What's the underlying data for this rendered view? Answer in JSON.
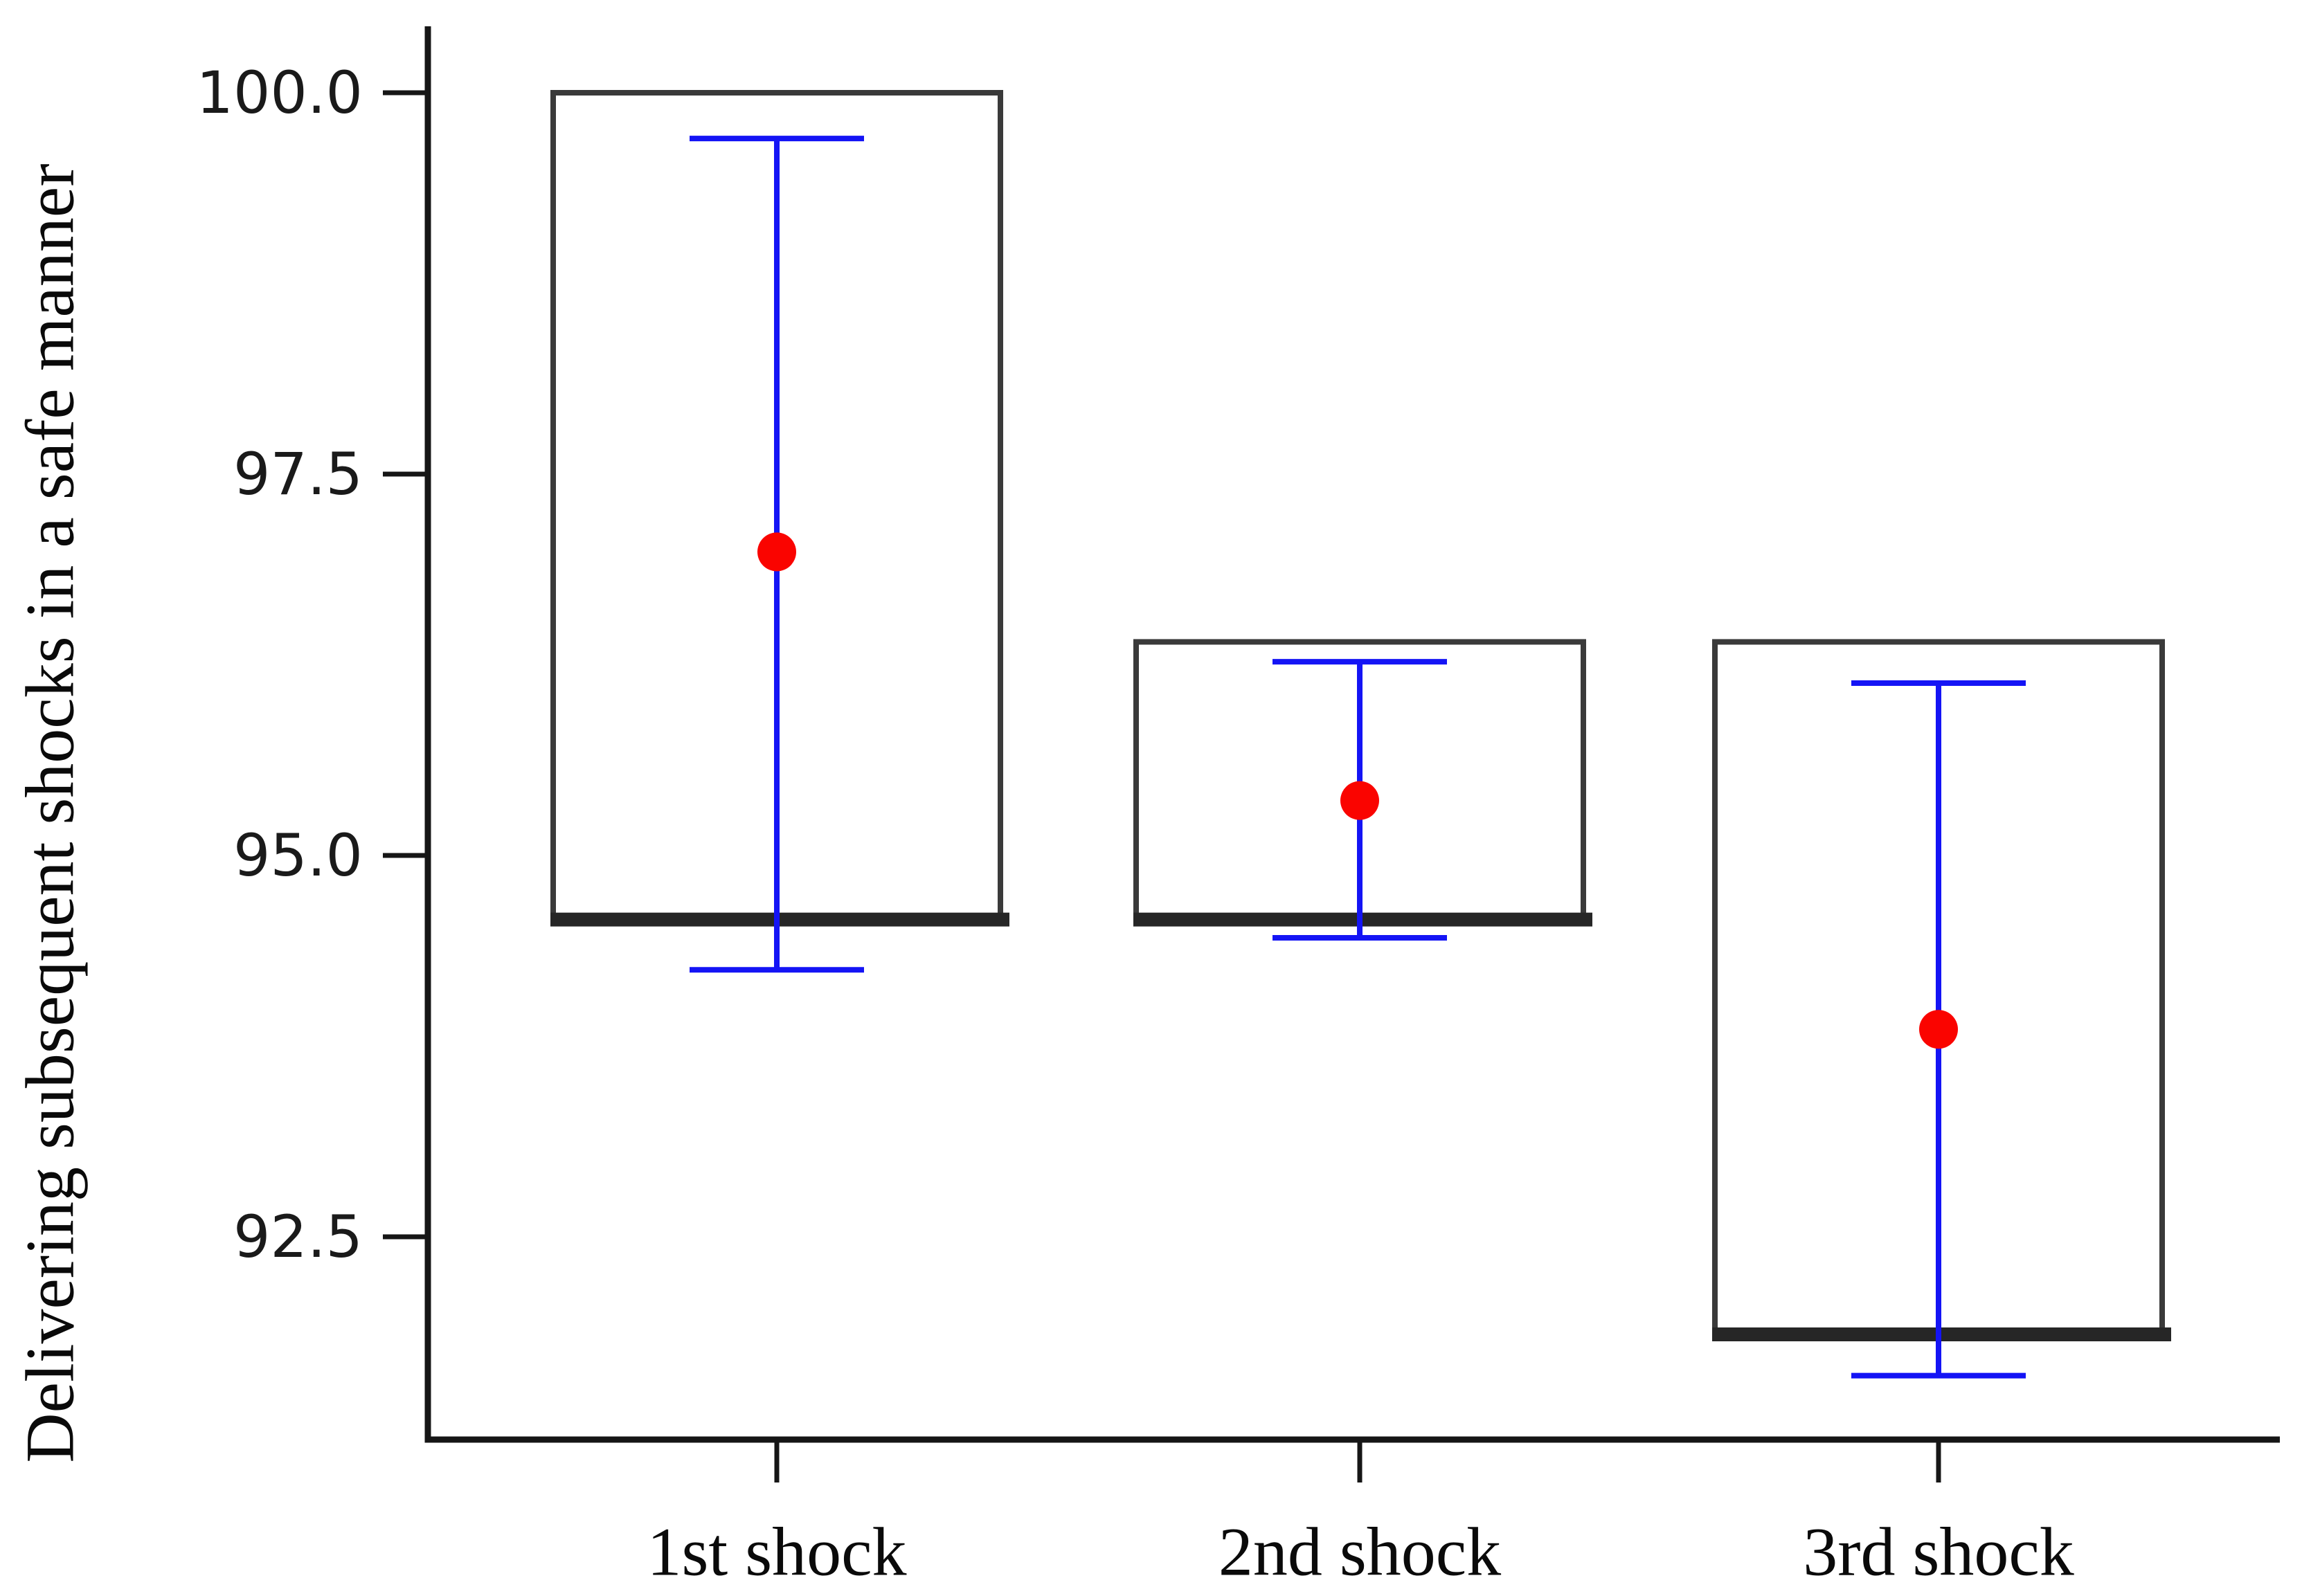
{
  "figure": {
    "y_axis": {
      "label": "Delivering subsequent shocks in a safe manner",
      "tick_labels": [
        "100.0",
        "97.5",
        "95.0",
        "92.5"
      ],
      "tick_values": [
        100.0,
        97.5,
        95.0,
        92.5
      ]
    },
    "x_axis": {
      "categories": [
        "1st shock",
        "2nd shock",
        "3rd shock"
      ]
    }
  },
  "chart_data": {
    "type": "box",
    "title": "",
    "xlabel": "",
    "ylabel": "Delivering subsequent shocks in a safe manner",
    "categories": [
      "1st shock",
      "2nd shock",
      "3rd shock"
    ],
    "yticks": [
      100.0,
      97.5,
      95.0,
      92.5
    ],
    "ylim": [
      91.17,
      100.44
    ],
    "grid": false,
    "legend": "none",
    "series": [
      {
        "name": "1st shock",
        "box_top": 100.0,
        "box_bottom": 94.58,
        "whisker_high": 99.7,
        "whisker_low": 94.25,
        "mean": 96.99
      },
      {
        "name": "2nd shock",
        "box_top": 96.4,
        "box_bottom": 94.58,
        "whisker_high": 96.27,
        "whisker_low": 94.46,
        "mean": 95.36
      },
      {
        "name": "3rd shock",
        "box_top": 96.4,
        "box_bottom": 91.86,
        "whisker_high": 96.13,
        "whisker_low": 91.59,
        "mean": 93.86
      }
    ],
    "colors": {
      "whisker": "#1414f5",
      "mean_dot": "#fa0400",
      "box_border": "#3a3a3a",
      "base_line": "#262626",
      "axis": "#161616",
      "background": "#ffffff"
    }
  }
}
